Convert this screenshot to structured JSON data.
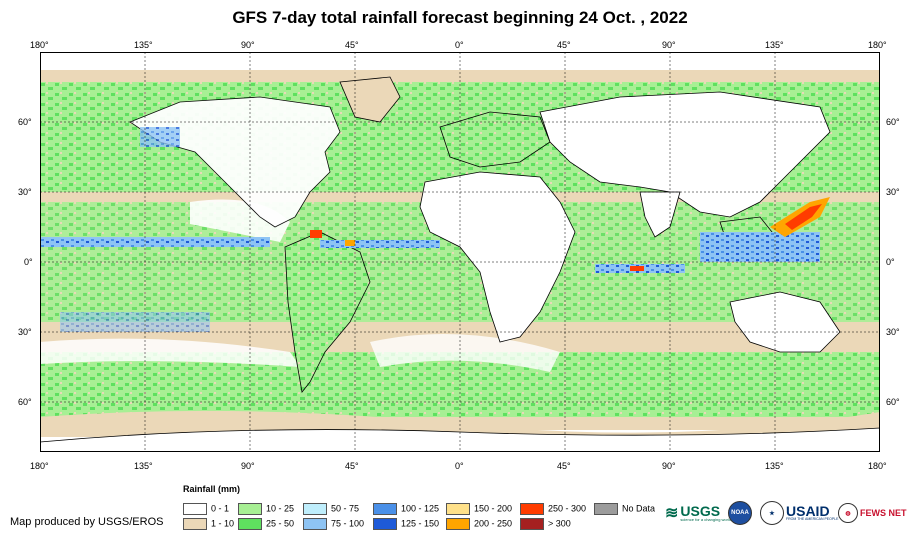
{
  "title": "GFS 7-day total rainfall forecast beginning 24 Oct. , 2022",
  "lon_labels": [
    "180°",
    "135°",
    "90°",
    "45°",
    "0°",
    "45°",
    "90°",
    "135°",
    "180°"
  ],
  "lat_labels": [
    "60°",
    "30°",
    "0°",
    "30°",
    "60°"
  ],
  "legend": {
    "title": "Rainfall (mm)",
    "items": [
      {
        "label": "0 - 1",
        "color": "#ffffff"
      },
      {
        "label": "1 - 10",
        "color": "#ebd8b8"
      },
      {
        "label": "10 - 25",
        "color": "#a7ef94"
      },
      {
        "label": "25 - 50",
        "color": "#5fe05f"
      },
      {
        "label": "50 - 75",
        "color": "#bfeefc"
      },
      {
        "label": "75 - 100",
        "color": "#8ec4f4"
      },
      {
        "label": "100 - 125",
        "color": "#4a90e8"
      },
      {
        "label": "125 - 150",
        "color": "#1e5ad8"
      },
      {
        "label": "150 - 200",
        "color": "#ffe18a"
      },
      {
        "label": "200 - 250",
        "color": "#ffa500"
      },
      {
        "label": "250 - 300",
        "color": "#ff3c00"
      },
      {
        "label": "> 300",
        "color": "#a52020"
      },
      {
        "label": "No Data",
        "color": "#9c9c9c"
      }
    ]
  },
  "credit": "Map produced by USGS/EROS",
  "logos": {
    "usgs": "USGS",
    "usgs_tagline": "science for a changing world",
    "noaa": "NOAA",
    "usaid": "USAID",
    "usaid_tagline": "FROM THE AMERICAN PEOPLE",
    "fewsnet": "FEWS NET",
    "colors": {
      "usgs": "#006a4d",
      "usaid": "#002f6c",
      "fewsnet": "#c8102e"
    }
  }
}
